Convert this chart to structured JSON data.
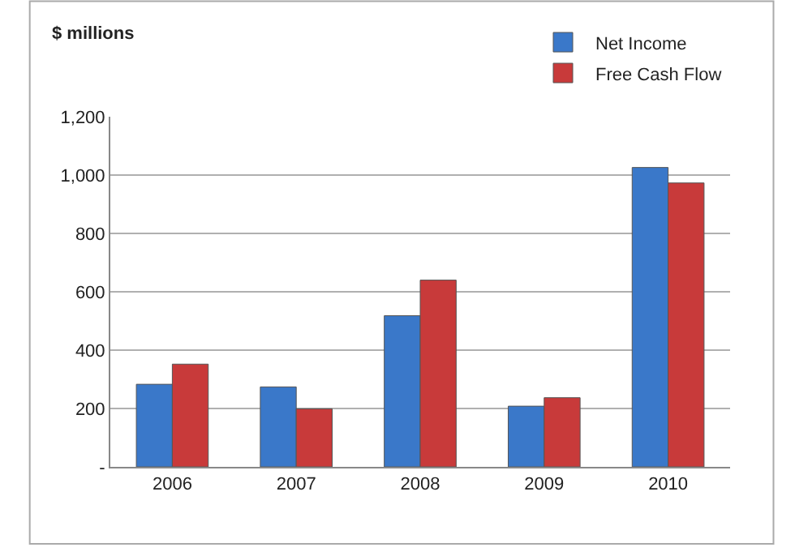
{
  "chart_data": {
    "type": "bar",
    "ylabel": "$ millions",
    "categories": [
      "2006",
      "2007",
      "2008",
      "2009",
      "2010"
    ],
    "series": [
      {
        "name": "Net Income",
        "color": "#3a78c9",
        "values": [
          283,
          274,
          518,
          208,
          1026
        ]
      },
      {
        "name": "Free Cash Flow",
        "color": "#c83a3a",
        "values": [
          352,
          199,
          640,
          237,
          973
        ]
      }
    ],
    "ylim": [
      0,
      1200
    ],
    "yticks": [
      {
        "value": 0,
        "label": "-"
      },
      {
        "value": 200,
        "label": "200"
      },
      {
        "value": 400,
        "label": "400"
      },
      {
        "value": 600,
        "label": "600"
      },
      {
        "value": 800,
        "label": "800"
      },
      {
        "value": 1000,
        "label": "1,000"
      },
      {
        "value": 1200,
        "label": "1,200"
      }
    ],
    "grid": "y",
    "legend": "top right"
  }
}
